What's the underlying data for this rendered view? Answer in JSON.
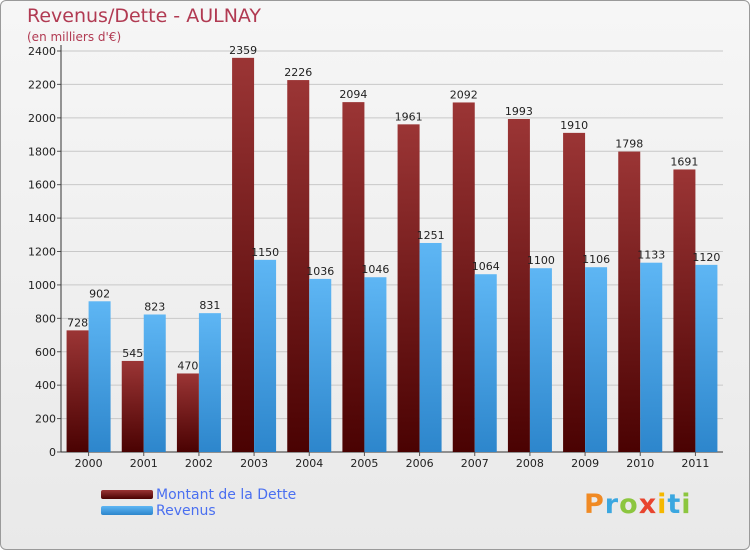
{
  "header": {
    "title": "Revenus/Dette - AULNAY",
    "subtitle": "(en milliers d'€)"
  },
  "logo": {
    "text": "Proxiti",
    "letters": [
      "P",
      "r",
      "o",
      "x",
      "i",
      "t",
      "i"
    ],
    "colors": [
      "#f08a24",
      "#3ba7e0",
      "#8cc63f",
      "#e8442e",
      "#f5b800",
      "#3ba7e0",
      "#8cc63f"
    ]
  },
  "legend": {
    "items": [
      {
        "label": "Montant de la Dette",
        "color": "#6e1414"
      },
      {
        "label": "Revenus",
        "color": "#4aa3e8"
      }
    ]
  },
  "chart_data": {
    "type": "bar",
    "title": "Revenus/Dette - AULNAY",
    "subtitle": "(en milliers d'€)",
    "categories": [
      "2000",
      "2001",
      "2002",
      "2003",
      "2004",
      "2005",
      "2006",
      "2007",
      "2008",
      "2009",
      "2010",
      "2011"
    ],
    "series": [
      {
        "name": "Montant de la Dette",
        "color": "#6e1414",
        "values": [
          728,
          545,
          470,
          2359,
          2226,
          2094,
          1961,
          2092,
          1993,
          1910,
          1798,
          1691
        ]
      },
      {
        "name": "Revenus",
        "color": "#4aa3e8",
        "values": [
          902,
          823,
          831,
          1150,
          1036,
          1046,
          1251,
          1064,
          1100,
          1106,
          1133,
          1120
        ]
      }
    ],
    "yticks": [
      0,
      200,
      400,
      600,
      800,
      1000,
      1200,
      1400,
      1600,
      1800,
      2000,
      2200,
      2400
    ],
    "ylim": [
      0,
      2400
    ],
    "grid": true,
    "legend_position": "bottom-left"
  }
}
